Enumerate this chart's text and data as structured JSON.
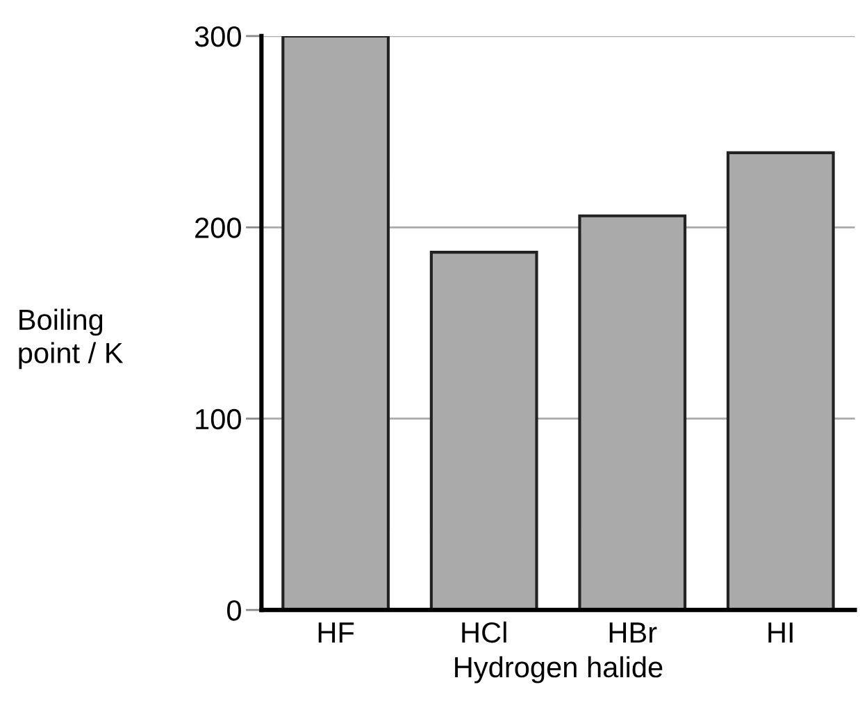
{
  "chart_data": {
    "type": "bar",
    "xlabel": "Hydrogen halide",
    "ylabel": "Boiling\npoint / K",
    "categories": [
      "HF",
      "HCl",
      "HBr",
      "HI"
    ],
    "values": [
      300,
      187,
      206,
      239
    ],
    "color": "#aaaaaa",
    "ylim": [
      0,
      300
    ],
    "yticks": [
      0,
      100,
      200,
      300
    ],
    "grid": "y"
  }
}
